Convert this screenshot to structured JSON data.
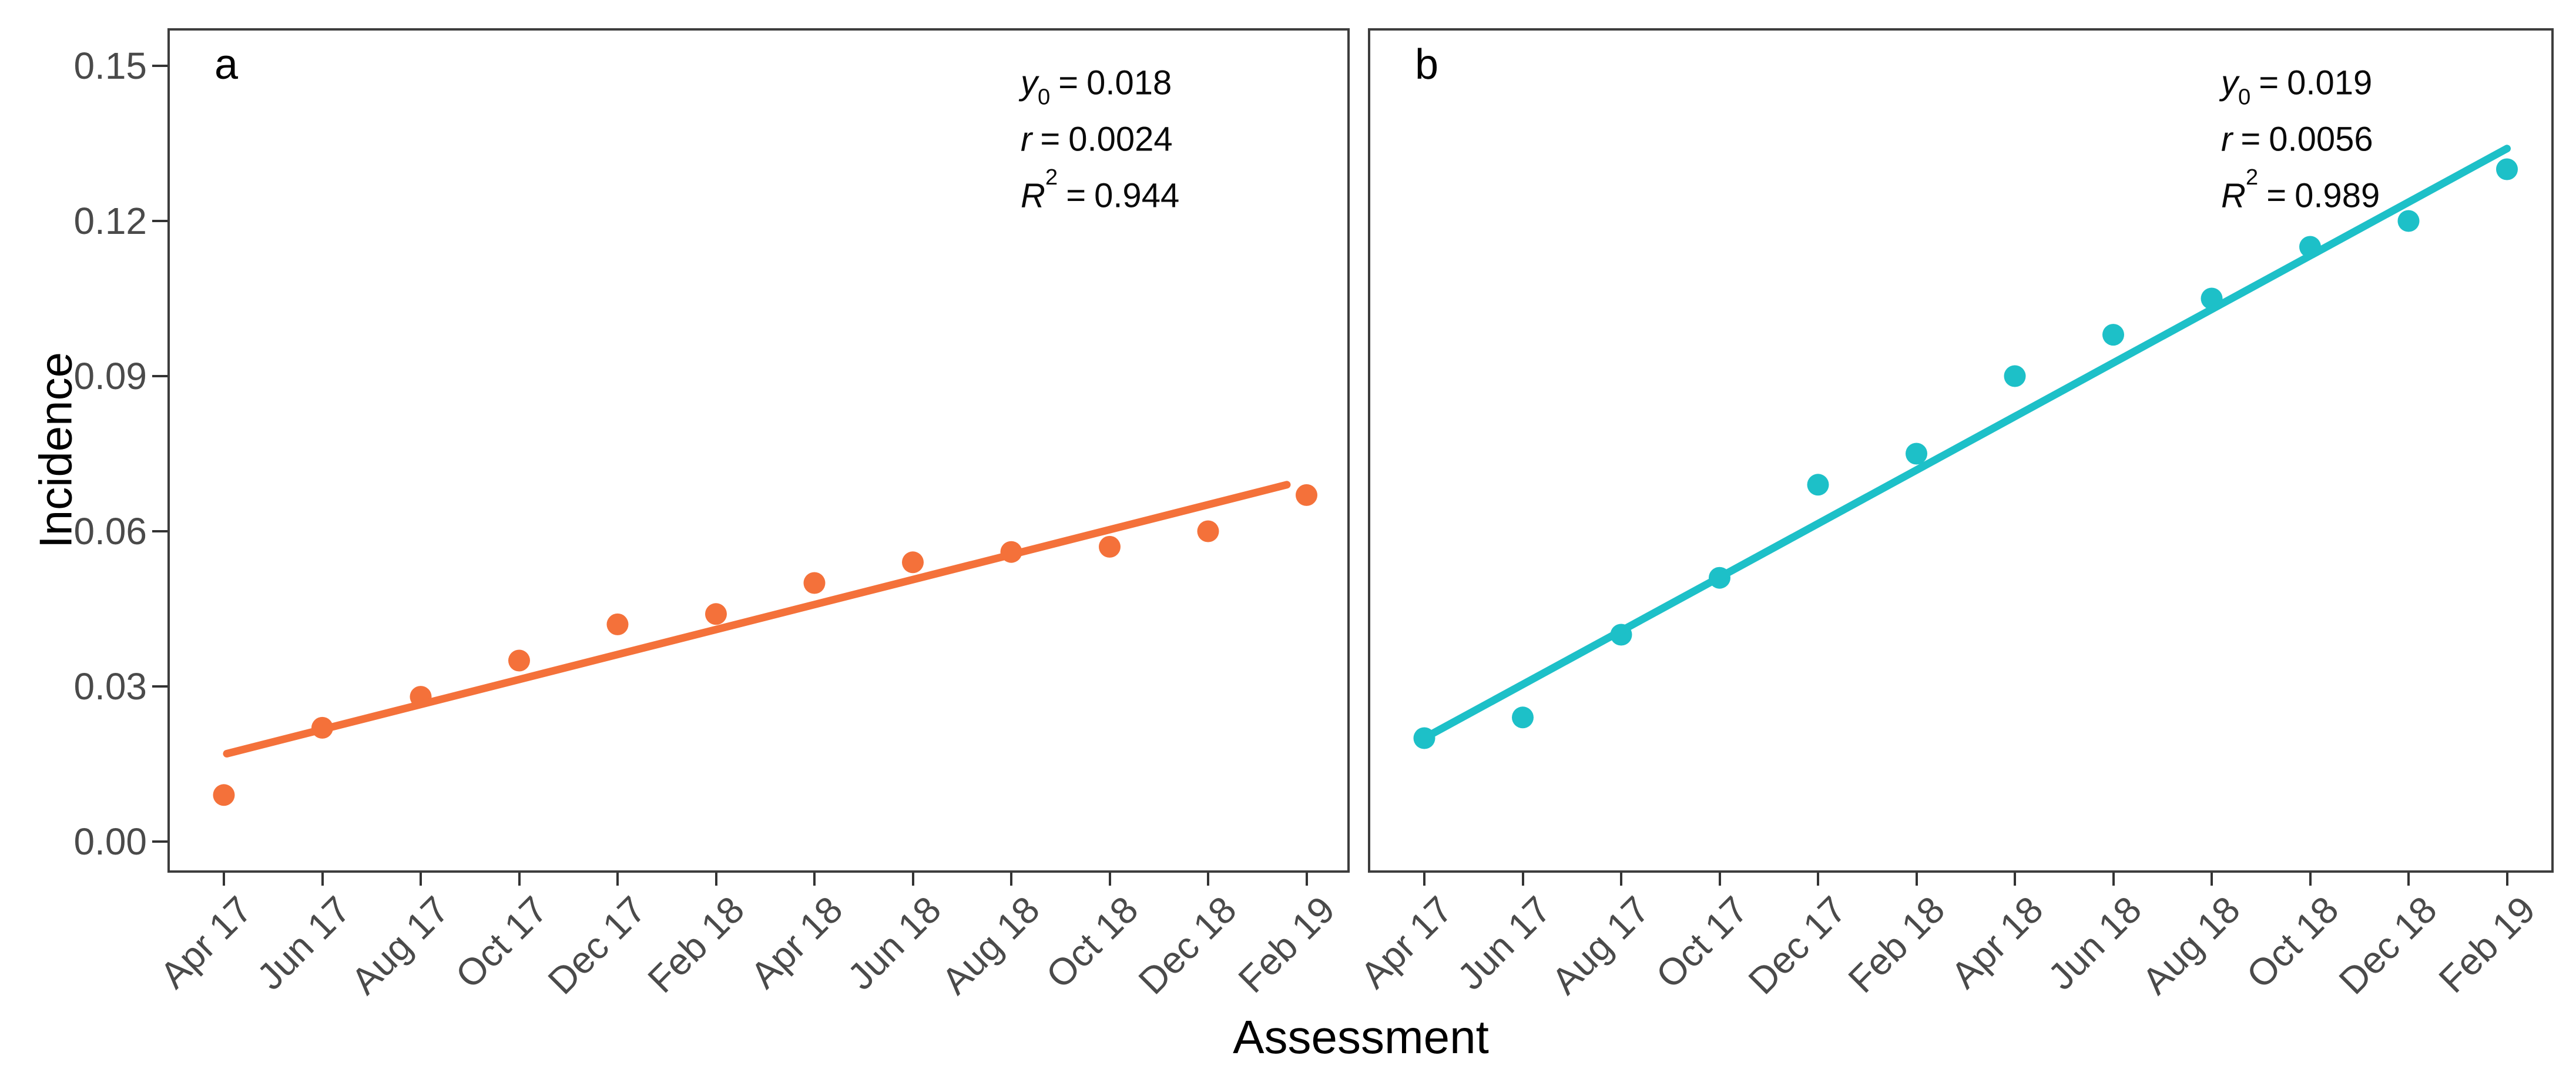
{
  "axes": {
    "y_label": "Incidence",
    "x_label": "Assessment",
    "y_tick_labels": [
      "0.00",
      "0.03",
      "0.06",
      "0.09",
      "0.12",
      "0.15"
    ],
    "x_tick_labels": [
      "Apr 17",
      "Jun 17",
      "Aug 17",
      "Oct 17",
      "Dec 17",
      "Feb 18",
      "Apr 18",
      "Jun 18",
      "Aug 18",
      "Oct 18",
      "Dec 18",
      "Feb 19"
    ]
  },
  "chart_data": {
    "type": "scatter",
    "title": "",
    "xlabel": "Assessment",
    "ylabel": "Incidence",
    "categories": [
      "Apr 17",
      "Jun 17",
      "Aug 17",
      "Oct 17",
      "Dec 17",
      "Feb 18",
      "Apr 18",
      "Jun 18",
      "Aug 18",
      "Oct 18",
      "Dec 18",
      "Feb 19"
    ],
    "y_ticks": [
      0,
      0.03,
      0.06,
      0.09,
      0.12,
      0.15
    ],
    "ylim": [
      -0.006,
      0.157
    ],
    "grid": false,
    "legend": "none",
    "series": [
      {
        "panel_label": "a",
        "name": "Panel a",
        "color": "#F4713A",
        "values": [
          0.009,
          0.022,
          0.028,
          0.035,
          0.042,
          0.044,
          0.05,
          0.054,
          0.056,
          0.057,
          0.06,
          0.067
        ],
        "trend_line": {
          "t0": 0.03,
          "v0": 0.017,
          "t1": 10.8,
          "v1": 0.069
        },
        "fit_stats": [
          {
            "var": "y",
            "sub": "0",
            "sup": "",
            "eq": "=",
            "val": "0.018"
          },
          {
            "var": "r",
            "sub": "",
            "sup": "",
            "eq": "=",
            "val": "0.0024"
          },
          {
            "var": "R",
            "sub": "",
            "sup": "2",
            "eq": "=",
            "val": "0.944"
          }
        ]
      },
      {
        "panel_label": "b",
        "name": "Panel b",
        "color": "#1DC0C8",
        "values": [
          0.02,
          0.024,
          0.04,
          0.051,
          0.069,
          0.075,
          0.09,
          0.098,
          0.105,
          0.115,
          0.12,
          0.13
        ],
        "trend_line": {
          "t0": -0.05,
          "v0": 0.0195,
          "t1": 11.0,
          "v1": 0.134
        },
        "fit_stats": [
          {
            "var": "y",
            "sub": "0",
            "sup": "",
            "eq": "=",
            "val": "0.019"
          },
          {
            "var": "r",
            "sub": "",
            "sup": "",
            "eq": "=",
            "val": "0.0056"
          },
          {
            "var": "R",
            "sub": "",
            "sup": "2",
            "eq": "=",
            "val": "0.989"
          }
        ]
      }
    ]
  }
}
